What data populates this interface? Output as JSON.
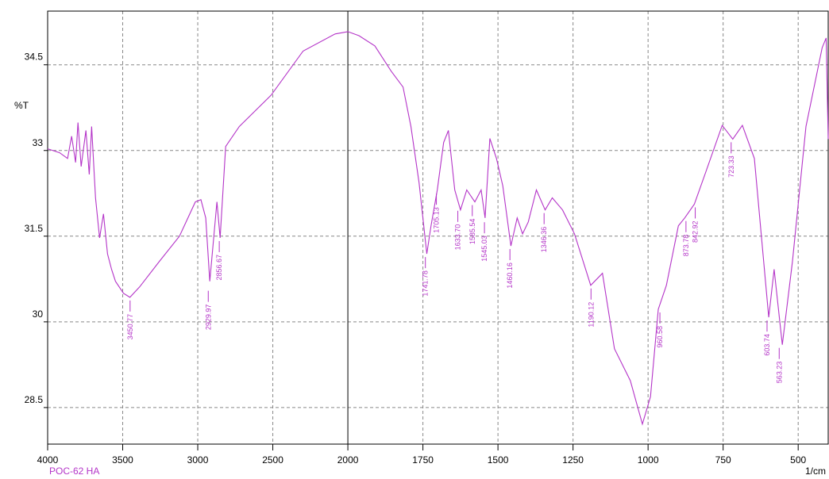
{
  "chart_data": {
    "type": "line",
    "ylabel": "%T",
    "xlabel": "1/cm",
    "sample_label": "POC-62 HA",
    "xlim": [
      4000,
      400
    ],
    "x_break": 2000,
    "x_break_ratio": 2,
    "xticks": [
      4000,
      3500,
      3000,
      2500,
      2000,
      1750,
      1500,
      1250,
      1000,
      750,
      500
    ],
    "ylim": [
      27.86,
      35.44
    ],
    "yticks": [
      34.5,
      33,
      31.5,
      30,
      28.5
    ],
    "grid": true,
    "series": [
      {
        "name": "POC-62 HA",
        "color": "#b434c8",
        "x": [
          4000,
          3920,
          3867,
          3840,
          3814,
          3798,
          3777,
          3745,
          3723,
          3707,
          3681,
          3654,
          3628,
          3601,
          3574,
          3548,
          3495,
          3452,
          3388,
          3255,
          3122,
          3016,
          2979,
          2947,
          2920,
          2894,
          2872,
          2851,
          2814,
          2723,
          2511,
          2298,
          2085,
          2000,
          1963,
          1910,
          1856,
          1816,
          1790,
          1763,
          1737,
          1723,
          1702,
          1681,
          1665,
          1644,
          1625,
          1604,
          1577,
          1556,
          1543,
          1527,
          1505,
          1484,
          1457,
          1436,
          1418,
          1399,
          1372,
          1343,
          1319,
          1285,
          1245,
          1191,
          1152,
          1112,
          1059,
          1019,
          992,
          966,
          939,
          899,
          878,
          846,
          806,
          753,
          718,
          686,
          646,
          598,
          580,
          553,
          519,
          474,
          420,
          407,
          400
        ],
        "values": [
          33.03,
          32.96,
          32.86,
          33.25,
          32.79,
          33.49,
          32.72,
          33.35,
          32.58,
          33.42,
          32.17,
          31.47,
          31.89,
          31.19,
          30.92,
          30.71,
          30.5,
          30.43,
          30.61,
          31.06,
          31.5,
          32.1,
          32.14,
          31.82,
          30.71,
          31.47,
          32.1,
          31.47,
          33.07,
          33.42,
          33.97,
          34.74,
          35.04,
          35.08,
          35.01,
          34.83,
          34.39,
          34.11,
          33.42,
          32.44,
          31.19,
          31.68,
          32.31,
          33.14,
          33.35,
          32.31,
          31.96,
          32.31,
          32.1,
          32.31,
          31.82,
          33.21,
          32.86,
          32.38,
          31.33,
          31.82,
          31.54,
          31.75,
          32.31,
          31.96,
          32.17,
          31.96,
          31.54,
          30.64,
          30.85,
          29.53,
          28.97,
          28.21,
          28.69,
          30.22,
          30.64,
          31.68,
          31.82,
          32.06,
          32.65,
          33.44,
          33.2,
          33.44,
          32.86,
          30.08,
          30.92,
          29.6,
          31.06,
          33.42,
          34.8,
          34.97,
          33.2
        ]
      }
    ],
    "peaks": [
      {
        "x": 3450.77,
        "y": 30.43,
        "label": "3450.77"
      },
      {
        "x": 2929.97,
        "y": 30.6,
        "label": "2929.97"
      },
      {
        "x": 2856.67,
        "y": 31.47,
        "label": "2856.67"
      },
      {
        "x": 1741.78,
        "y": 31.19,
        "label": "1741.78"
      },
      {
        "x": 1705.13,
        "y": 32.3,
        "label": "1705.13"
      },
      {
        "x": 1633.7,
        "y": 32.0,
        "label": "1633.70"
      },
      {
        "x": 1585.54,
        "y": 32.1,
        "label": "1585.54"
      },
      {
        "x": 1545.03,
        "y": 31.8,
        "label": "1545.03"
      },
      {
        "x": 1460.16,
        "y": 31.33,
        "label": "1460.16"
      },
      {
        "x": 1346.36,
        "y": 31.96,
        "label": "1346.36"
      },
      {
        "x": 1190.12,
        "y": 30.64,
        "label": "1190.12"
      },
      {
        "x": 960.58,
        "y": 30.22,
        "label": "960.58"
      },
      {
        "x": 873.78,
        "y": 31.82,
        "label": "873.78"
      },
      {
        "x": 842.92,
        "y": 32.06,
        "label": "842.92"
      },
      {
        "x": 723.33,
        "y": 33.2,
        "label": "723.33"
      },
      {
        "x": 603.74,
        "y": 30.08,
        "label": "603.74"
      },
      {
        "x": 563.23,
        "y": 29.6,
        "label": "563.23"
      }
    ]
  }
}
